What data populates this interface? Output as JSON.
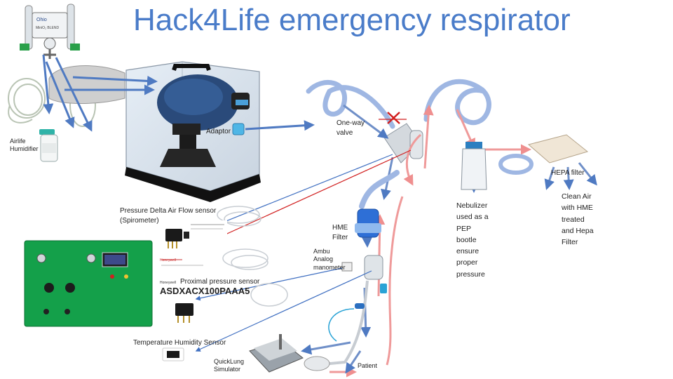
{
  "title": "Hack4Life emergency respirator",
  "labels": {
    "humidifier": "Airlife\nHumidifier",
    "adaptor": "Adaptor",
    "one_way_valve": "One-way\nvalve",
    "pressure_delta": "Pressure Delta Air Flow sensor\n(Spirometer)",
    "hme_filter": "HME\nFilter",
    "ambu": "Ambu\nAnalog\nmanometer",
    "proximal": "Proximal pressure sensor",
    "part_number": "ASDXACX100PAAA5",
    "temp_humidity": "Temperature Humidity Sensor",
    "quicklung": "QuickLung\nSimulator",
    "patient": "Patient",
    "nebulizer": "Nebulizer\nused as a\nPEP\nbootle\nensure\nproper\npressure",
    "hepa": "HEPA filter",
    "clean_air": "Clean Air\nwith HME\ntreated\nand Hepa\nFilter"
  },
  "small_text": {
    "ohio_brand": "Ohio",
    "blend": "MiniO₂ BLEND",
    "honeywell_1": "Honeywell",
    "honeywell_2": "Honeywell"
  },
  "colors": {
    "title": "#4a7cc9",
    "inhale_arrow": "#4f7ac2",
    "exhale_arrow": "#ef9a9a",
    "wire_blue": "#3f6fc1",
    "wire_red": "#d11f1f",
    "panel_green": "#14a04a",
    "tube_blue": "#9fb7e3"
  },
  "icons": {
    "blocked": "red-x-mark-icon"
  }
}
